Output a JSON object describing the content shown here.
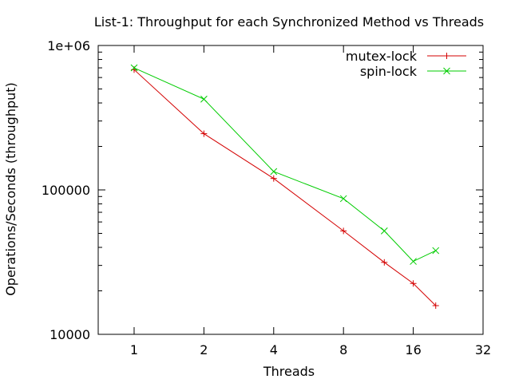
{
  "chart_data": {
    "type": "line",
    "title": "List-1: Throughput for each Synchronized Method vs Threads",
    "xlabel": "Threads",
    "ylabel": "Operations/Seconds (throughput)",
    "x_scale": "log2",
    "y_scale": "log10",
    "xlim": [
      0.7,
      32
    ],
    "ylim": [
      10000,
      1000000
    ],
    "x_ticks": [
      1,
      2,
      4,
      8,
      16,
      32
    ],
    "x_tick_labels": [
      "1",
      "2",
      "4",
      "8",
      "16",
      "32"
    ],
    "y_ticks": [
      10000,
      100000,
      1000000
    ],
    "y_tick_labels": [
      "10000",
      "100000",
      "1e+06"
    ],
    "grid": false,
    "legend_position": "top-right",
    "series": [
      {
        "name": "mutex-lock",
        "color": "#d40000",
        "marker": "plus",
        "x": [
          1,
          2,
          4,
          8,
          12,
          16,
          20
        ],
        "y": [
          680000,
          245000,
          120000,
          52000,
          31500,
          22500,
          15800
        ]
      },
      {
        "name": "spin-lock",
        "color": "#00cc00",
        "marker": "cross",
        "x": [
          1,
          2,
          4,
          8,
          12,
          16,
          20
        ],
        "y": [
          700000,
          425000,
          134000,
          87000,
          52000,
          32000,
          38000
        ]
      }
    ]
  }
}
